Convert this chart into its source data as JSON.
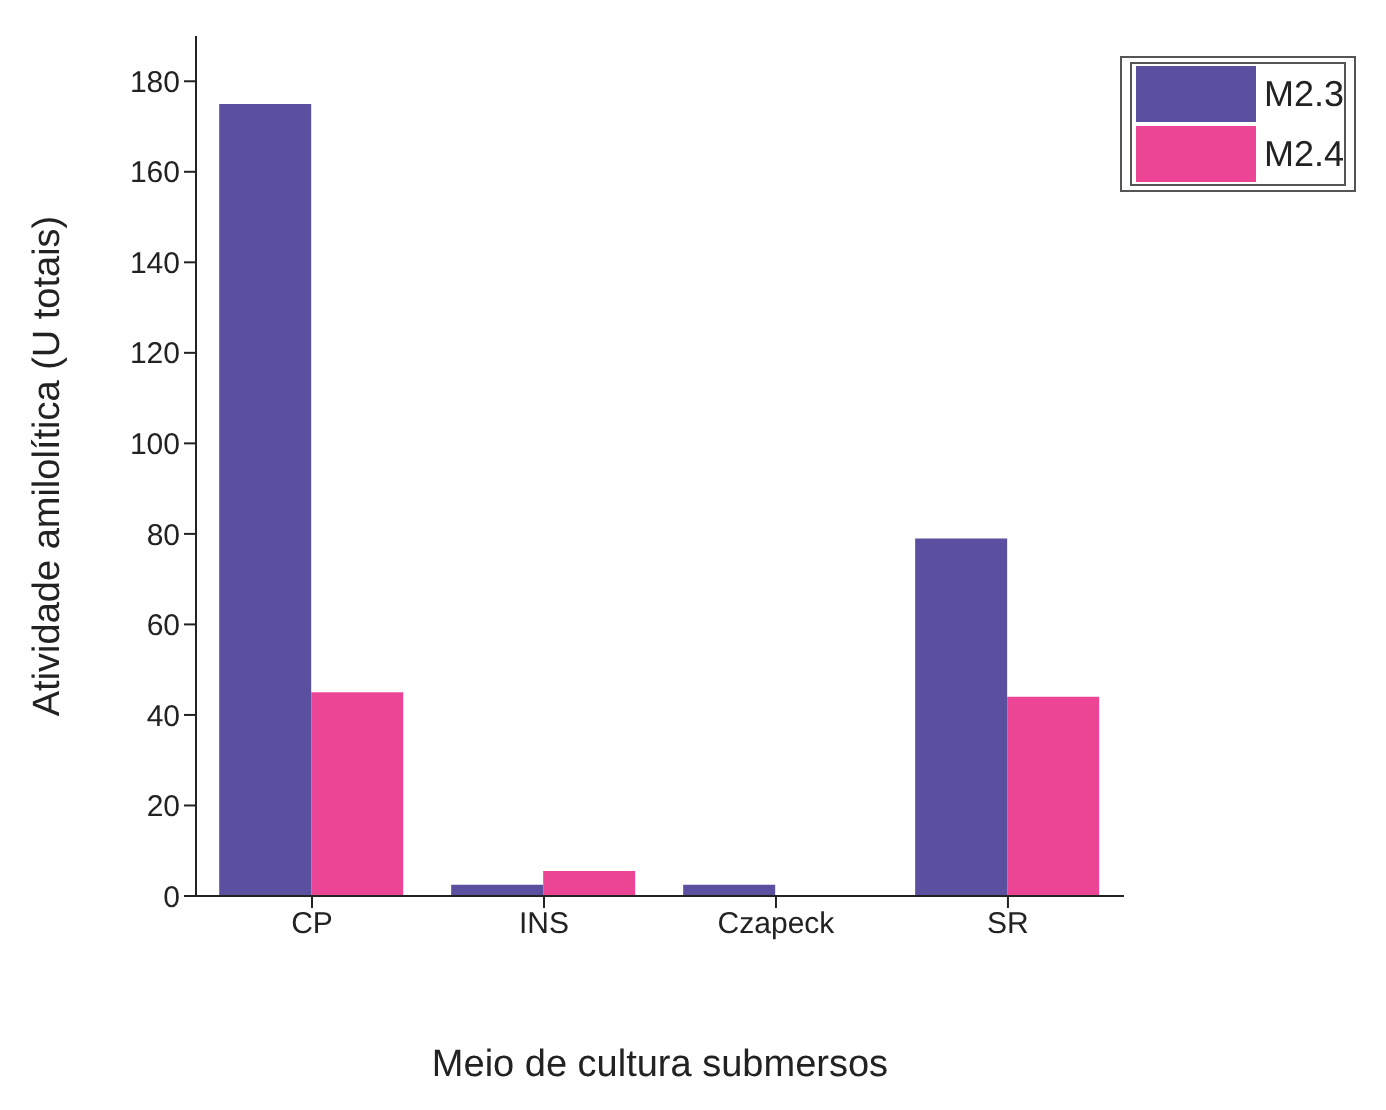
{
  "chart_data": {
    "type": "bar",
    "xlabel": "Meio de cultura submersos",
    "ylabel": "Atividade amilolítica (U totais)",
    "categories": [
      "CP",
      "INS",
      "Czapeck",
      "SR"
    ],
    "series": [
      {
        "name": "M2.3",
        "color": "#5b4f9f",
        "values": [
          175,
          2.5,
          2.5,
          79
        ]
      },
      {
        "name": "M2.4",
        "color": "#ec4596",
        "values": [
          45,
          5.5,
          0,
          44
        ]
      }
    ],
    "ylim": [
      0,
      190
    ],
    "yticks": [
      0,
      20,
      40,
      60,
      80,
      100,
      120,
      140,
      160,
      180
    ],
    "grid": false,
    "legend": "top right"
  }
}
